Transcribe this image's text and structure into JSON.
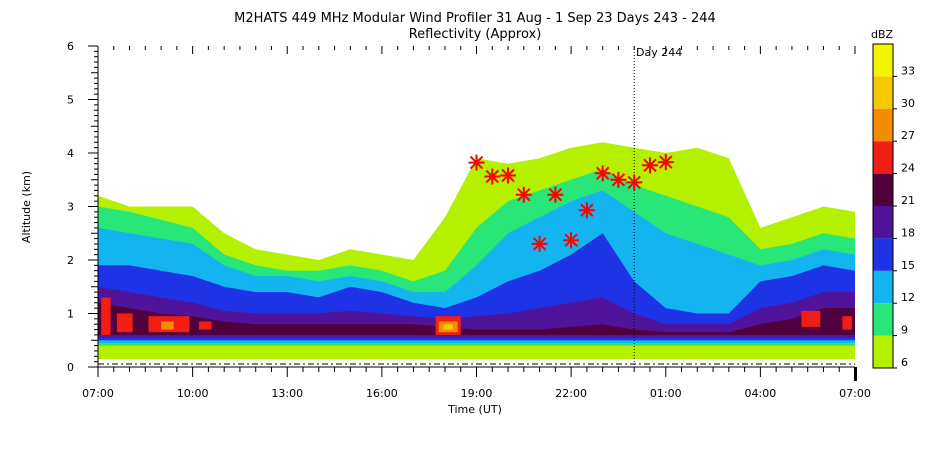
{
  "chart_data": {
    "type": "heatmap",
    "title": "M2HATS 449 MHz Modular Wind Profiler  31 Aug -  1 Sep 23 Days 243 - 244",
    "subtitle": "Reflectivity (Approx)",
    "xlabel": "Time (UT)",
    "ylabel": "Altitude (km)",
    "xlim_hours": [
      7,
      31
    ],
    "ylim": [
      0,
      6
    ],
    "x_ticks": [
      "07:00",
      "10:00",
      "13:00",
      "16:00",
      "19:00",
      "22:00",
      "01:00",
      "04:00",
      "07:00"
    ],
    "y_ticks": [
      "0",
      "1",
      "2",
      "3",
      "4",
      "5",
      "6"
    ],
    "day_marker": {
      "label": "Day 244",
      "x_hours": 24
    },
    "colorbar": {
      "title": "dBZ",
      "levels": [
        6,
        9,
        12,
        15,
        18,
        21,
        24,
        27,
        30,
        33
      ],
      "level_labels": [
        "6",
        "9",
        "12",
        "15",
        "18",
        "21",
        "24",
        "27",
        "30",
        "33"
      ],
      "colors": [
        "#b4f000",
        "#28e678",
        "#14b4f0",
        "#1e32e6",
        "#50149b",
        "#50003c",
        "#f01e14",
        "#f58c00",
        "#f5c800",
        "#f5f500"
      ]
    },
    "bands": [
      {
        "level": 6,
        "x": [
          7,
          8,
          10,
          11,
          12,
          13,
          14,
          15,
          16,
          17,
          18,
          19,
          20,
          21,
          22,
          23,
          24,
          25,
          26,
          27,
          28,
          29,
          30,
          31
        ],
        "bottom": [
          0.15,
          0.15,
          0.15,
          0.15,
          0.15,
          0.15,
          0.15,
          0.15,
          0.15,
          0.15,
          0.15,
          0.15,
          0.15,
          0.15,
          0.15,
          0.15,
          0.15,
          0.15,
          0.15,
          0.15,
          0.15,
          0.15,
          0.15,
          0.15
        ],
        "top": [
          3.2,
          3.0,
          3.0,
          2.5,
          2.2,
          2.1,
          2.0,
          2.2,
          2.1,
          2.0,
          2.8,
          3.9,
          3.8,
          3.9,
          4.1,
          4.2,
          4.1,
          4.0,
          4.1,
          3.9,
          2.6,
          2.8,
          3.0,
          2.9
        ]
      },
      {
        "level": 9,
        "x": [
          7,
          8,
          10,
          11,
          12,
          13,
          14,
          15,
          16,
          17,
          18,
          19,
          20,
          21,
          22,
          23,
          24,
          25,
          26,
          27,
          28,
          29,
          30,
          31
        ],
        "bottom": [
          0.4,
          0.4,
          0.4,
          0.4,
          0.4,
          0.4,
          0.4,
          0.4,
          0.4,
          0.4,
          0.4,
          0.4,
          0.4,
          0.4,
          0.4,
          0.4,
          0.4,
          0.4,
          0.4,
          0.4,
          0.4,
          0.4,
          0.4,
          0.4
        ],
        "top": [
          3.0,
          2.9,
          2.6,
          2.1,
          1.9,
          1.8,
          1.8,
          1.9,
          1.8,
          1.6,
          1.8,
          2.6,
          3.1,
          3.3,
          3.5,
          3.7,
          3.4,
          3.2,
          3.0,
          2.8,
          2.2,
          2.3,
          2.5,
          2.4
        ]
      },
      {
        "level": 12,
        "x": [
          7,
          8,
          10,
          11,
          12,
          13,
          14,
          15,
          16,
          17,
          18,
          19,
          20,
          21,
          22,
          23,
          24,
          25,
          26,
          27,
          28,
          29,
          30,
          31
        ],
        "bottom": [
          0.45,
          0.45,
          0.45,
          0.45,
          0.45,
          0.45,
          0.45,
          0.45,
          0.45,
          0.45,
          0.45,
          0.45,
          0.45,
          0.45,
          0.45,
          0.45,
          0.45,
          0.45,
          0.45,
          0.45,
          0.45,
          0.45,
          0.45,
          0.45
        ],
        "top": [
          2.6,
          2.5,
          2.3,
          1.9,
          1.7,
          1.7,
          1.6,
          1.7,
          1.6,
          1.4,
          1.4,
          1.9,
          2.5,
          2.8,
          3.1,
          3.3,
          2.9,
          2.5,
          2.3,
          2.1,
          1.9,
          2.0,
          2.2,
          2.1
        ]
      },
      {
        "level": 15,
        "x": [
          7,
          8,
          10,
          11,
          12,
          13,
          14,
          15,
          16,
          17,
          18,
          19,
          20,
          21,
          22,
          23,
          24,
          25,
          26,
          27,
          28,
          29,
          30,
          31
        ],
        "bottom": [
          0.5,
          0.5,
          0.5,
          0.5,
          0.5,
          0.5,
          0.5,
          0.5,
          0.5,
          0.5,
          0.5,
          0.5,
          0.5,
          0.5,
          0.5,
          0.5,
          0.5,
          0.5,
          0.5,
          0.5,
          0.5,
          0.5,
          0.5,
          0.5
        ],
        "top": [
          1.9,
          1.9,
          1.7,
          1.5,
          1.4,
          1.4,
          1.3,
          1.5,
          1.4,
          1.2,
          1.1,
          1.3,
          1.6,
          1.8,
          2.1,
          2.5,
          1.6,
          1.1,
          1.0,
          1.0,
          1.6,
          1.7,
          1.9,
          1.8
        ]
      },
      {
        "level": 18,
        "x": [
          7,
          8,
          10,
          11,
          12,
          13,
          14,
          15,
          16,
          17,
          18,
          19,
          20,
          21,
          22,
          23,
          24,
          25,
          26,
          27,
          28,
          29,
          30,
          31
        ],
        "bottom": [
          0.55,
          0.55,
          0.55,
          0.55,
          0.55,
          0.55,
          0.55,
          0.55,
          0.55,
          0.55,
          0.55,
          0.55,
          0.55,
          0.55,
          0.55,
          0.55,
          0.55,
          0.55,
          0.55,
          0.55,
          0.55,
          0.55,
          0.55,
          0.55
        ],
        "top": [
          1.5,
          1.4,
          1.2,
          1.05,
          1.0,
          1.0,
          1.0,
          1.05,
          1.0,
          0.95,
          0.9,
          0.95,
          1.0,
          1.1,
          1.2,
          1.3,
          1.0,
          0.8,
          0.8,
          0.8,
          1.1,
          1.2,
          1.4,
          1.4
        ]
      },
      {
        "level": 21,
        "x": [
          7,
          8,
          9,
          10,
          11,
          12,
          13,
          14,
          15,
          16,
          17,
          18,
          19,
          20,
          21,
          22,
          23,
          24,
          25,
          26,
          27,
          28,
          29,
          30,
          31
        ],
        "bottom": [
          0.6,
          0.6,
          0.6,
          0.6,
          0.6,
          0.6,
          0.6,
          0.6,
          0.6,
          0.6,
          0.6,
          0.6,
          0.6,
          0.6,
          0.6,
          0.6,
          0.6,
          0.6,
          0.6,
          0.6,
          0.6,
          0.6,
          0.6,
          0.6,
          0.6
        ],
        "top": [
          1.2,
          1.1,
          1.0,
          0.95,
          0.85,
          0.8,
          0.8,
          0.8,
          0.8,
          0.8,
          0.8,
          0.75,
          0.7,
          0.7,
          0.7,
          0.75,
          0.8,
          0.7,
          0.65,
          0.65,
          0.65,
          0.8,
          0.9,
          1.1,
          1.1
        ]
      }
    ],
    "hotspots": [
      {
        "x0": 7.1,
        "x1": 7.4,
        "y0": 0.6,
        "y1": 1.3,
        "level": 24
      },
      {
        "x0": 7.6,
        "x1": 8.1,
        "y0": 0.65,
        "y1": 1.0,
        "level": 24
      },
      {
        "x0": 8.6,
        "x1": 9.9,
        "y0": 0.65,
        "y1": 0.95,
        "level": 24
      },
      {
        "x0": 9.0,
        "x1": 9.4,
        "y0": 0.7,
        "y1": 0.85,
        "level": 27
      },
      {
        "x0": 10.2,
        "x1": 10.6,
        "y0": 0.7,
        "y1": 0.85,
        "level": 24
      },
      {
        "x0": 17.7,
        "x1": 18.5,
        "y0": 0.6,
        "y1": 0.95,
        "level": 24
      },
      {
        "x0": 17.8,
        "x1": 18.4,
        "y0": 0.65,
        "y1": 0.85,
        "level": 27
      },
      {
        "x0": 17.95,
        "x1": 18.25,
        "y0": 0.7,
        "y1": 0.8,
        "level": 30
      },
      {
        "x0": 29.3,
        "x1": 29.9,
        "y0": 0.75,
        "y1": 1.05,
        "level": 24
      },
      {
        "x0": 30.6,
        "x1": 30.9,
        "y0": 0.7,
        "y1": 0.95,
        "level": 24
      }
    ],
    "markers": {
      "type": "asterisk",
      "color": "#ff0000",
      "x": [
        19.0,
        19.5,
        20.0,
        20.5,
        21.0,
        21.5,
        22.0,
        22.5,
        23.0,
        23.5,
        24.0,
        24.5,
        25.0
      ],
      "y": [
        3.82,
        3.56,
        3.58,
        3.22,
        2.3,
        3.22,
        2.37,
        2.93,
        3.62,
        3.5,
        3.45,
        3.77,
        3.83
      ]
    }
  }
}
